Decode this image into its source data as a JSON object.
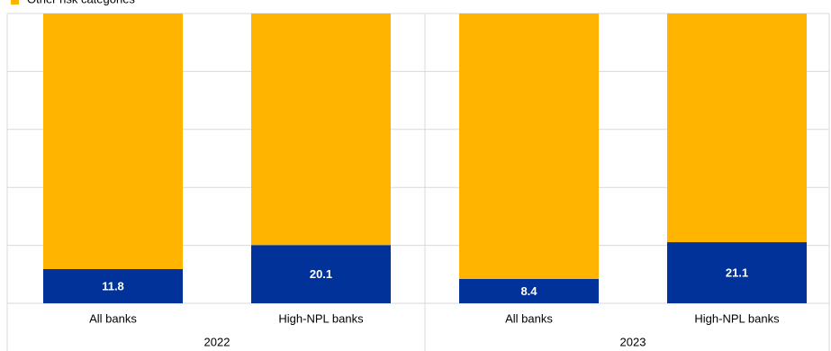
{
  "chart_data": {
    "type": "bar",
    "stacked": true,
    "categories": [
      "All banks",
      "High-NPL banks",
      "All banks",
      "High-NPL banks"
    ],
    "groups": [
      "2022",
      "2023"
    ],
    "series": [
      {
        "color": "#003299",
        "values": [
          11.8,
          20.1,
          8.4,
          21.1
        ],
        "show_labels": true
      },
      {
        "name": "Other risk categories",
        "color": "#ffb400",
        "values": [
          88.2,
          79.9,
          91.6,
          78.9
        ]
      }
    ],
    "ylim": [
      0,
      100
    ],
    "yticks": [
      0,
      20,
      40,
      60,
      80,
      100
    ],
    "grid": true
  }
}
